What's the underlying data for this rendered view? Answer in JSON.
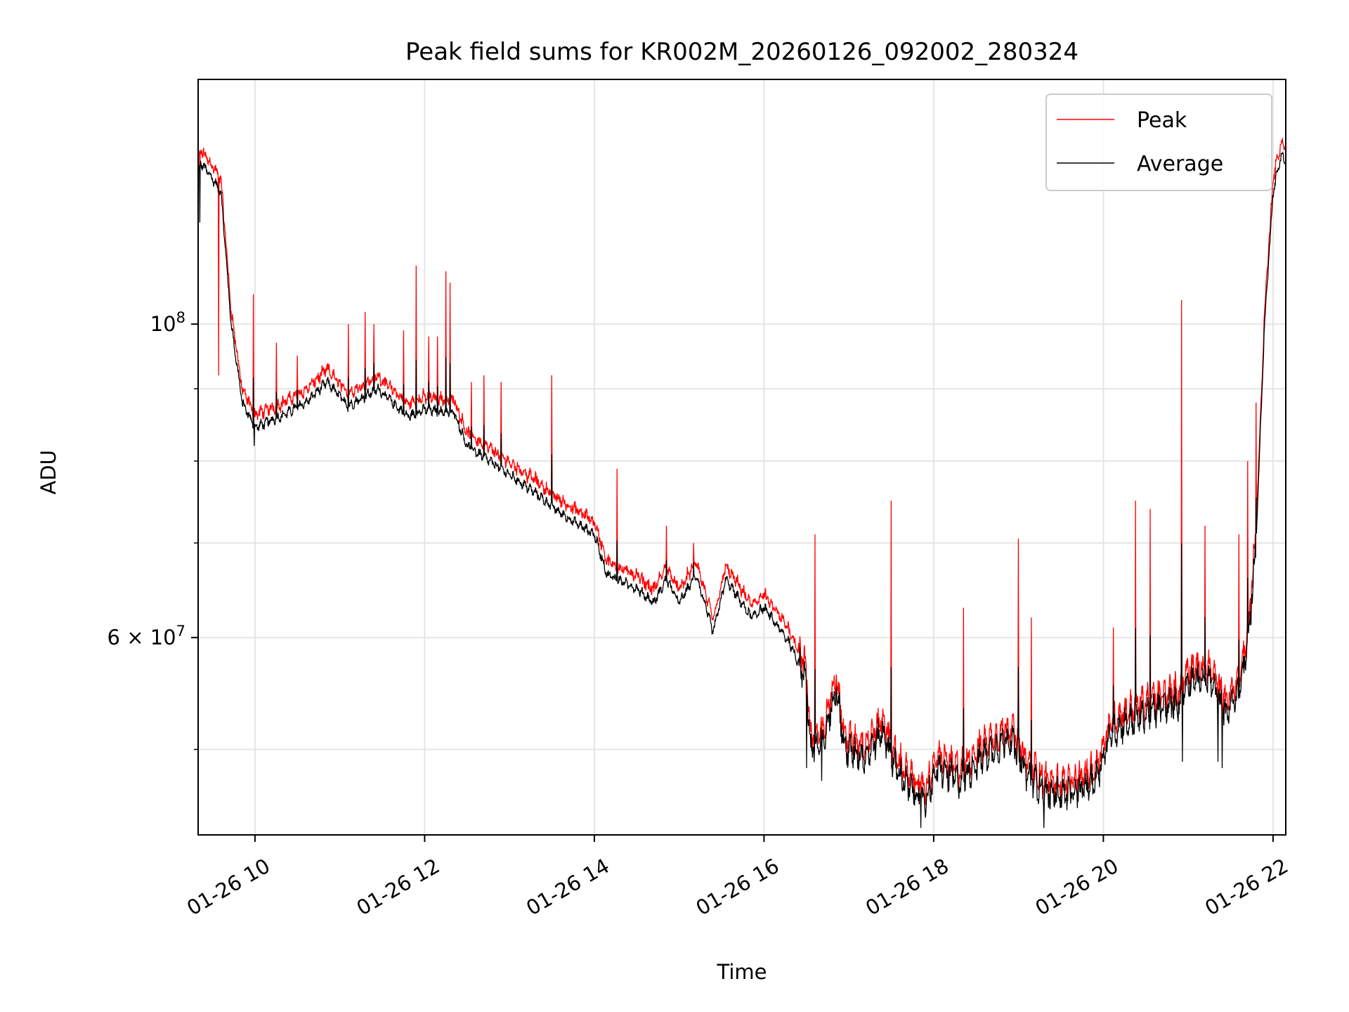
{
  "chart_data": {
    "type": "line",
    "title": "Peak field sums for KR002M_20260126_092002_280324",
    "xlabel": "Time",
    "ylabel": "ADU",
    "yscale": "log",
    "xlim_hours": [
      9.33,
      22.15
    ],
    "ylim": [
      43500000,
      149000000
    ],
    "x_ticks": [
      {
        "value": 10,
        "label": "01-26 10"
      },
      {
        "value": 12,
        "label": "01-26 12"
      },
      {
        "value": 14,
        "label": "01-26 14"
      },
      {
        "value": 16,
        "label": "01-26 16"
      },
      {
        "value": 18,
        "label": "01-26 18"
      },
      {
        "value": 20,
        "label": "01-26 20"
      },
      {
        "value": 22,
        "label": "01-26 22"
      }
    ],
    "y_major_ticks": [
      {
        "value": 60000000,
        "mantissa": "6",
        "times": "×",
        "base": "10",
        "exp": "7"
      },
      {
        "value": 100000000,
        "mantissa": "",
        "times": "",
        "base": "10",
        "exp": "8"
      }
    ],
    "y_minor_ticks": [
      50000000,
      70000000,
      80000000,
      90000000
    ],
    "grid": true,
    "legend_position": "top-right",
    "series": [
      {
        "name": "Peak",
        "color": "#ff0000",
        "base_key": "average",
        "offset_ratio": 1.015,
        "spikes": [
          {
            "x": 9.35,
            "y": 148000000
          },
          {
            "x": 9.57,
            "y": 92000000
          },
          {
            "x": 9.98,
            "y": 105000000
          },
          {
            "x": 10.25,
            "y": 97000000
          },
          {
            "x": 10.5,
            "y": 95000000
          },
          {
            "x": 11.1,
            "y": 100000000
          },
          {
            "x": 11.3,
            "y": 102000000
          },
          {
            "x": 11.4,
            "y": 100000000
          },
          {
            "x": 11.75,
            "y": 99000000
          },
          {
            "x": 11.9,
            "y": 110000000
          },
          {
            "x": 12.05,
            "y": 98000000
          },
          {
            "x": 12.15,
            "y": 98000000
          },
          {
            "x": 12.25,
            "y": 109000000
          },
          {
            "x": 12.3,
            "y": 107000000
          },
          {
            "x": 12.55,
            "y": 91000000
          },
          {
            "x": 12.7,
            "y": 92000000
          },
          {
            "x": 12.9,
            "y": 91000000
          },
          {
            "x": 13.5,
            "y": 92000000
          },
          {
            "x": 14.27,
            "y": 79000000
          },
          {
            "x": 14.85,
            "y": 72000000
          },
          {
            "x": 15.17,
            "y": 70000000
          },
          {
            "x": 16.6,
            "y": 71000000
          },
          {
            "x": 17.5,
            "y": 75000000
          },
          {
            "x": 18.35,
            "y": 63000000
          },
          {
            "x": 19.0,
            "y": 70500000
          },
          {
            "x": 19.15,
            "y": 62000000
          },
          {
            "x": 20.12,
            "y": 61000000
          },
          {
            "x": 20.38,
            "y": 75000000
          },
          {
            "x": 20.55,
            "y": 74000000
          },
          {
            "x": 20.92,
            "y": 104000000
          },
          {
            "x": 21.2,
            "y": 72000000
          },
          {
            "x": 21.6,
            "y": 71000000
          },
          {
            "x": 21.7,
            "y": 80000000
          },
          {
            "x": 21.8,
            "y": 88000000
          }
        ]
      },
      {
        "name": "Average",
        "color": "#000000",
        "trend": [
          [
            9.33,
            128000000
          ],
          [
            9.36,
            130000000
          ],
          [
            9.45,
            128000000
          ],
          [
            9.6,
            124000000
          ],
          [
            9.72,
            100000000
          ],
          [
            9.85,
            88000000
          ],
          [
            10.0,
            84500000
          ],
          [
            10.3,
            86000000
          ],
          [
            10.6,
            88000000
          ],
          [
            10.85,
            91000000
          ],
          [
            11.1,
            87500000
          ],
          [
            11.45,
            90000000
          ],
          [
            11.8,
            86000000
          ],
          [
            12.0,
            87000000
          ],
          [
            12.35,
            86500000
          ],
          [
            12.5,
            82000000
          ],
          [
            12.9,
            79000000
          ],
          [
            13.3,
            76000000
          ],
          [
            13.6,
            73500000
          ],
          [
            14.0,
            71000000
          ],
          [
            14.15,
            66500000
          ],
          [
            14.5,
            65000000
          ],
          [
            14.7,
            63500000
          ],
          [
            14.85,
            66000000
          ],
          [
            15.0,
            63500000
          ],
          [
            15.2,
            66500000
          ],
          [
            15.4,
            60500000
          ],
          [
            15.55,
            66000000
          ],
          [
            15.85,
            62000000
          ],
          [
            16.0,
            63000000
          ],
          [
            16.3,
            59500000
          ],
          [
            16.5,
            56000000
          ],
          [
            16.55,
            50000000
          ],
          [
            16.7,
            50500000
          ],
          [
            16.85,
            55500000
          ],
          [
            16.95,
            50000000
          ],
          [
            17.2,
            49500000
          ],
          [
            17.4,
            51500000
          ],
          [
            17.55,
            48500000
          ],
          [
            17.7,
            47000000
          ],
          [
            17.9,
            46000000
          ],
          [
            18.05,
            48500000
          ],
          [
            18.3,
            47500000
          ],
          [
            18.6,
            49500000
          ],
          [
            18.9,
            51000000
          ],
          [
            19.1,
            48000000
          ],
          [
            19.35,
            46500000
          ],
          [
            19.65,
            46500000
          ],
          [
            19.9,
            47500000
          ],
          [
            20.1,
            51500000
          ],
          [
            20.5,
            53000000
          ],
          [
            20.9,
            54000000
          ],
          [
            21.0,
            56000000
          ],
          [
            21.25,
            56000000
          ],
          [
            21.45,
            53000000
          ],
          [
            21.6,
            55000000
          ],
          [
            21.7,
            59000000
          ],
          [
            21.8,
            70000000
          ],
          [
            21.9,
            100000000
          ],
          [
            22.0,
            124000000
          ],
          [
            22.1,
            132000000
          ],
          [
            22.15,
            130000000
          ]
        ],
        "dips": [
          {
            "x": 9.35,
            "y": 118000000
          },
          {
            "x": 9.99,
            "y": 82000000
          },
          {
            "x": 16.5,
            "y": 48500000
          },
          {
            "x": 16.68,
            "y": 47500000
          },
          {
            "x": 17.85,
            "y": 44000000
          },
          {
            "x": 19.3,
            "y": 44000000
          },
          {
            "x": 20.93,
            "y": 49000000
          },
          {
            "x": 21.35,
            "y": 49000000
          },
          {
            "x": 21.4,
            "y": 48500000
          }
        ]
      }
    ]
  }
}
